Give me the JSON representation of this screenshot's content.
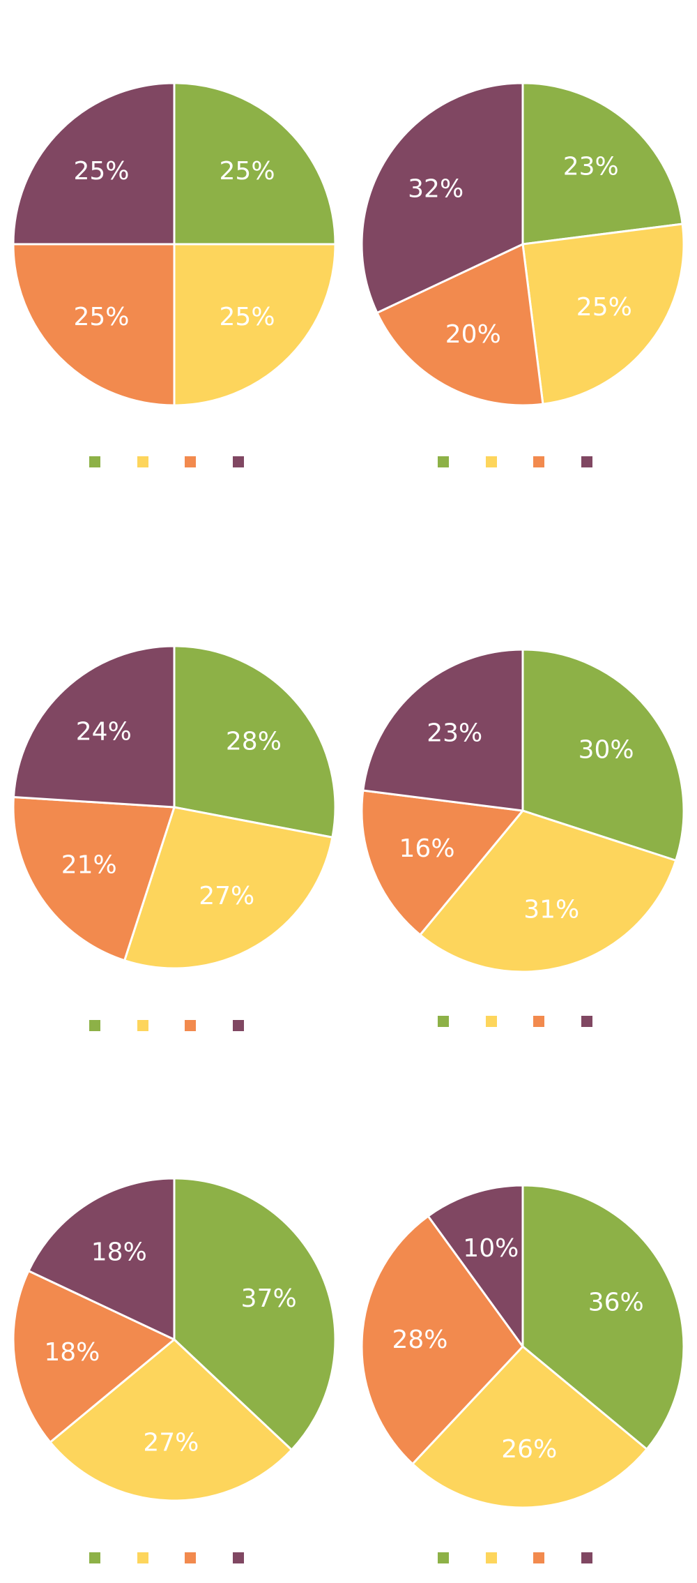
{
  "colors": {
    "green": "#8db147",
    "yellow": "#fdd55c",
    "orange": "#f28a4e",
    "purple": "#804762"
  },
  "chart_data": [
    {
      "type": "pie",
      "title": "",
      "values": [
        25,
        25,
        25,
        25
      ],
      "labels": [
        "25%",
        "25%",
        "25%",
        "25%"
      ],
      "legend": "bottom",
      "legend_labels": [
        "",
        "",
        "",
        ""
      ]
    },
    {
      "type": "pie",
      "title": "",
      "values": [
        23,
        25,
        20,
        32
      ],
      "labels": [
        "23%",
        "25%",
        "20%",
        "32%"
      ],
      "legend": "bottom",
      "legend_labels": [
        "",
        "",
        "",
        ""
      ]
    },
    {
      "type": "pie",
      "title": "",
      "values": [
        28,
        27,
        21,
        24
      ],
      "labels": [
        "28%",
        "27%",
        "21%",
        "24%"
      ],
      "legend": "bottom",
      "legend_labels": [
        "",
        "",
        "",
        ""
      ]
    },
    {
      "type": "pie",
      "title": "",
      "values": [
        30,
        31,
        16,
        23
      ],
      "labels": [
        "30%",
        "31%",
        "16%",
        "23%"
      ],
      "legend": "bottom",
      "legend_labels": [
        "",
        "",
        "",
        ""
      ]
    },
    {
      "type": "pie",
      "title": "",
      "values": [
        37,
        27,
        18,
        18
      ],
      "labels": [
        "37%",
        "27%",
        "18%",
        "18%"
      ],
      "legend": "bottom",
      "legend_labels": [
        "",
        "",
        "",
        ""
      ]
    },
    {
      "type": "pie",
      "title": "",
      "values": [
        36,
        26,
        28,
        10
      ],
      "labels": [
        "36%",
        "26%",
        "28%",
        "10%"
      ],
      "legend": "bottom",
      "legend_labels": [
        "",
        "",
        "",
        ""
      ]
    }
  ]
}
